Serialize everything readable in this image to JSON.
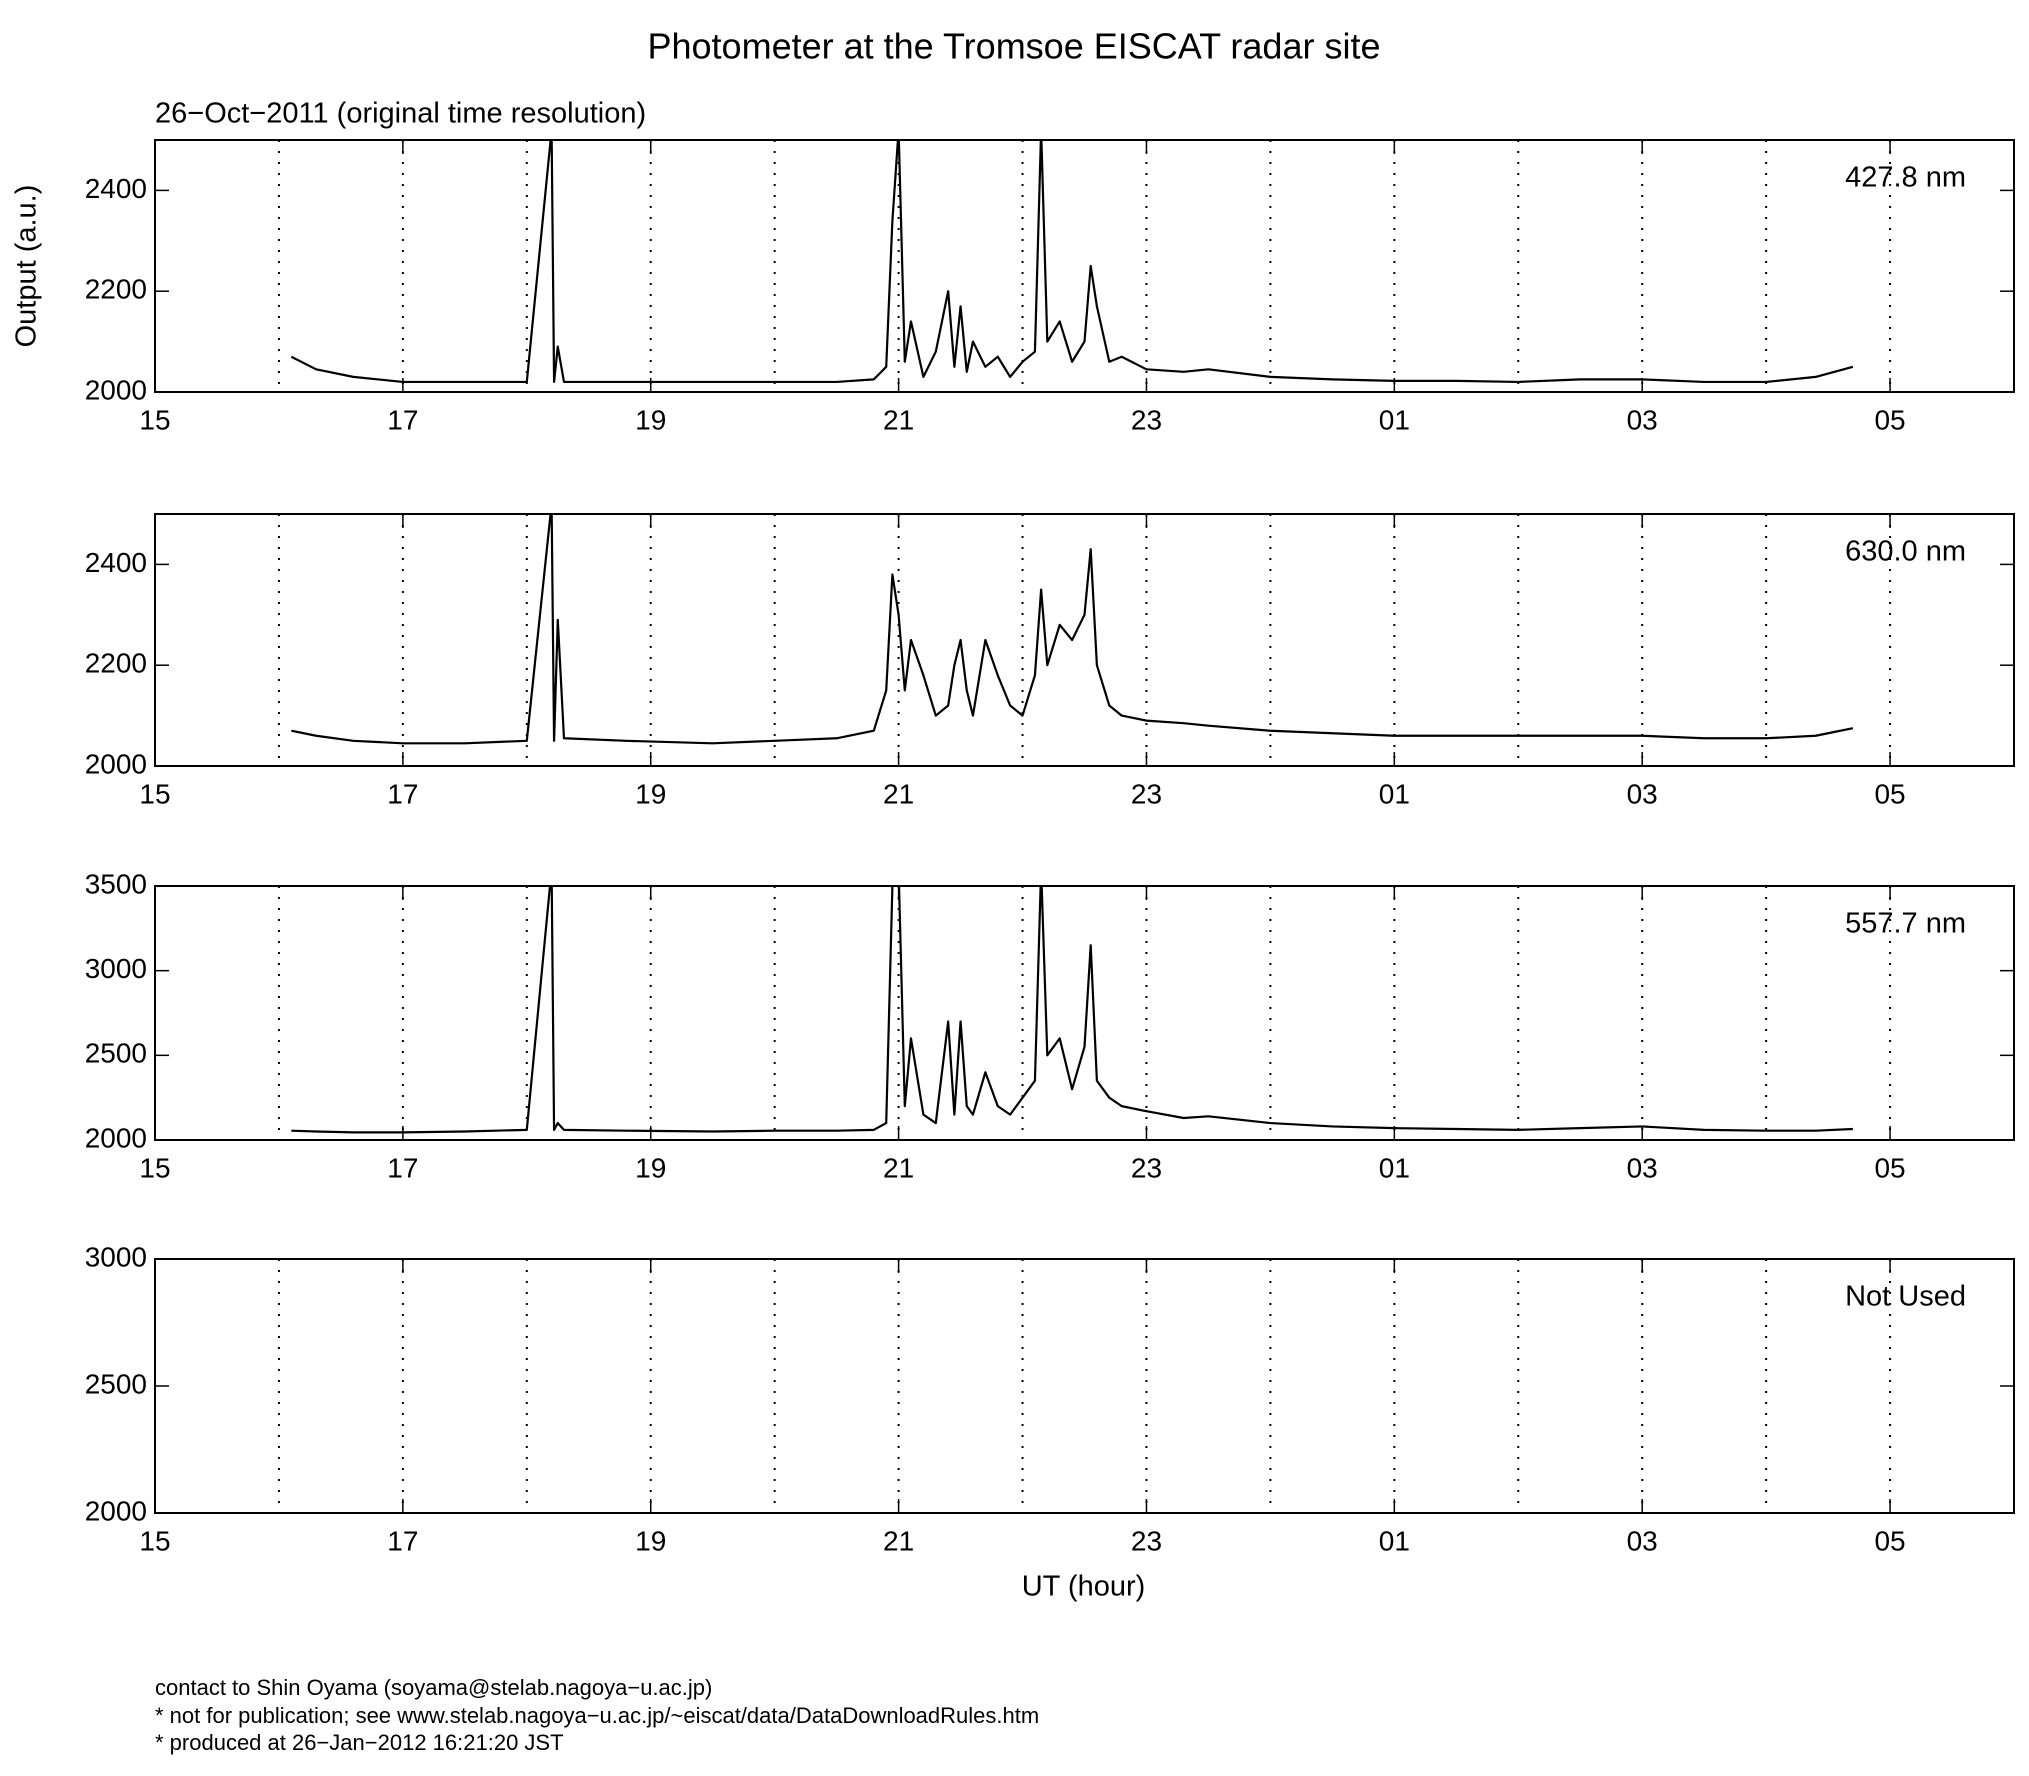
{
  "title": "Photometer at the Tromsoe EISCAT radar site",
  "subtitle": "26−Oct−2011 (original time resolution)",
  "footer": [
    "contact to Shin Oyama (soyama@stelab.nagoya−u.ac.jp)",
    "* not for publication; see www.stelab.nagoya−u.ac.jp/~eiscat/data/DataDownloadRules.htm",
    "* produced at 26−Jan−2012 16:21:20 JST"
  ],
  "x_axis": {
    "xlim": [
      15,
      30
    ],
    "xticks": [
      15,
      17,
      19,
      21,
      23,
      {
        "value": 25,
        "label": "01"
      },
      {
        "value": 27,
        "label": "03"
      },
      {
        "value": 29,
        "label": "05"
      }
    ],
    "minor_ticks": [
      16,
      18,
      20,
      22,
      24,
      26,
      28
    ],
    "grid": "dotted"
  },
  "chart_data": [
    {
      "type": "line",
      "label": "427.8 nm",
      "ylabel": "Output (a.u.)",
      "ylim": [
        2000,
        2500
      ],
      "yticks": [
        2000,
        2200,
        2400
      ],
      "x": [
        16.1,
        16.3,
        16.6,
        17.0,
        17.5,
        18.0,
        18.2,
        18.22,
        18.25,
        18.3,
        18.8,
        19.5,
        20.0,
        20.5,
        20.8,
        20.9,
        20.95,
        21.0,
        21.05,
        21.1,
        21.2,
        21.3,
        21.4,
        21.45,
        21.5,
        21.55,
        21.6,
        21.7,
        21.8,
        21.9,
        22.0,
        22.1,
        22.15,
        22.2,
        22.3,
        22.4,
        22.5,
        22.55,
        22.6,
        22.7,
        22.8,
        23.0,
        23.3,
        23.5,
        24.0,
        24.5,
        25.0,
        25.5,
        26.0,
        26.5,
        27.0,
        27.5,
        28.0,
        28.4,
        28.7
      ],
      "series": [
        {
          "color": "#000000",
          "values": [
            2070,
            2045,
            2030,
            2020,
            2020,
            2020,
            2520,
            2020,
            2090,
            2020,
            2020,
            2020,
            2020,
            2020,
            2025,
            2050,
            2340,
            2520,
            2060,
            2140,
            2030,
            2080,
            2200,
            2050,
            2170,
            2040,
            2100,
            2050,
            2070,
            2030,
            2060,
            2080,
            2520,
            2100,
            2140,
            2060,
            2100,
            2250,
            2170,
            2060,
            2070,
            2045,
            2040,
            2045,
            2030,
            2025,
            2022,
            2022,
            2020,
            2025,
            2025,
            2020,
            2020,
            2030,
            2050
          ]
        }
      ]
    },
    {
      "type": "line",
      "label": "630.0 nm",
      "ylim": [
        2000,
        2500
      ],
      "yticks": [
        2000,
        2200,
        2400
      ],
      "x": [
        16.1,
        16.3,
        16.6,
        17.0,
        17.5,
        18.0,
        18.2,
        18.22,
        18.25,
        18.3,
        18.8,
        19.5,
        20.0,
        20.5,
        20.8,
        20.9,
        20.95,
        21.0,
        21.05,
        21.1,
        21.2,
        21.3,
        21.4,
        21.45,
        21.5,
        21.55,
        21.6,
        21.7,
        21.8,
        21.9,
        22.0,
        22.1,
        22.15,
        22.2,
        22.3,
        22.4,
        22.5,
        22.55,
        22.6,
        22.7,
        22.8,
        23.0,
        23.3,
        23.5,
        24.0,
        24.5,
        25.0,
        25.5,
        26.0,
        26.5,
        27.0,
        27.5,
        28.0,
        28.4,
        28.7
      ],
      "series": [
        {
          "color": "#000000",
          "values": [
            2070,
            2060,
            2050,
            2045,
            2045,
            2050,
            2520,
            2050,
            2290,
            2055,
            2050,
            2045,
            2050,
            2055,
            2070,
            2150,
            2380,
            2300,
            2150,
            2250,
            2180,
            2100,
            2120,
            2200,
            2250,
            2150,
            2100,
            2250,
            2180,
            2120,
            2100,
            2180,
            2350,
            2200,
            2280,
            2250,
            2300,
            2430,
            2200,
            2120,
            2100,
            2090,
            2085,
            2080,
            2070,
            2065,
            2060,
            2060,
            2060,
            2060,
            2060,
            2055,
            2055,
            2060,
            2075
          ]
        }
      ]
    },
    {
      "type": "line",
      "label": "557.7 nm",
      "ylim": [
        2000,
        3500
      ],
      "yticks": [
        2000,
        2500,
        3000,
        3500
      ],
      "x": [
        16.1,
        16.3,
        16.6,
        17.0,
        17.5,
        18.0,
        18.2,
        18.22,
        18.25,
        18.3,
        18.8,
        19.5,
        20.0,
        20.5,
        20.8,
        20.9,
        20.95,
        21.0,
        21.05,
        21.1,
        21.2,
        21.3,
        21.4,
        21.45,
        21.5,
        21.55,
        21.6,
        21.7,
        21.8,
        21.9,
        22.0,
        22.1,
        22.15,
        22.2,
        22.3,
        22.4,
        22.5,
        22.55,
        22.6,
        22.7,
        22.8,
        23.0,
        23.3,
        23.5,
        24.0,
        24.5,
        25.0,
        25.5,
        26.0,
        26.5,
        27.0,
        27.5,
        28.0,
        28.4,
        28.7
      ],
      "series": [
        {
          "color": "#000000",
          "values": [
            2055,
            2050,
            2045,
            2045,
            2050,
            2060,
            3600,
            2060,
            2100,
            2060,
            2055,
            2050,
            2055,
            2055,
            2060,
            2100,
            3500,
            3600,
            2200,
            2600,
            2150,
            2100,
            2700,
            2150,
            2700,
            2200,
            2150,
            2400,
            2200,
            2150,
            2250,
            2350,
            3600,
            2500,
            2600,
            2300,
            2550,
            3150,
            2350,
            2250,
            2200,
            2170,
            2130,
            2140,
            2100,
            2080,
            2070,
            2065,
            2060,
            2070,
            2080,
            2060,
            2055,
            2055,
            2065
          ]
        }
      ]
    },
    {
      "type": "line",
      "label": "Not Used",
      "xlabel": "UT (hour)",
      "ylim": [
        2000,
        3000
      ],
      "yticks": [
        2000,
        2500,
        3000
      ],
      "x": [],
      "series": []
    }
  ]
}
